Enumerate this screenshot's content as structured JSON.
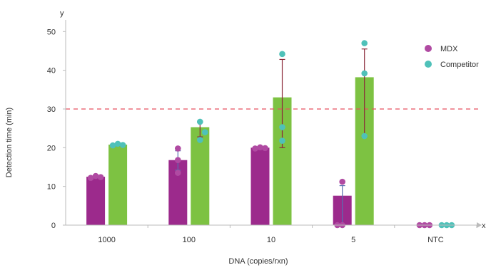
{
  "chart_data": {
    "type": "bar",
    "title": "",
    "xlabel": "DNA (copies/rxn)",
    "ylabel": "Detection time (min)",
    "x_axis_end_label": "x",
    "y_axis_end_label": "y",
    "ylim": [
      0,
      53
    ],
    "yticks": [
      0,
      10,
      20,
      30,
      40,
      50
    ],
    "categories": [
      "1000",
      "100",
      "10",
      "5",
      "NTC"
    ],
    "threshold": {
      "value": 30,
      "color": "#e8525f",
      "style": "dashed"
    },
    "legend_position": "top-right",
    "series": [
      {
        "name": "MDX",
        "bar_color": "#9c2a8c",
        "point_color": "#b04aa2",
        "error_color": "#5a6fb0",
        "values": [
          12.5,
          16.8,
          20,
          7.6,
          0
        ],
        "error_low": [
          12.2,
          14.2,
          19.6,
          0,
          0
        ],
        "error_high": [
          12.8,
          19.2,
          20.3,
          10.2,
          0
        ],
        "points": [
          [
            12.2,
            12.7,
            12.4
          ],
          [
            13.5,
            16.8,
            19.8
          ],
          [
            19.8,
            20.1,
            19.9
          ],
          [
            0,
            0,
            11.2
          ],
          [
            0,
            0,
            0
          ]
        ]
      },
      {
        "name": "Competitor",
        "bar_color": "#7dc242",
        "point_color": "#4fc1b9",
        "error_color": "#8b2a3a",
        "values": [
          20.8,
          25.3,
          33,
          38.2,
          0
        ],
        "error_low": [
          20.5,
          22.8,
          20,
          22.8,
          0
        ],
        "error_high": [
          21.1,
          26.5,
          42.8,
          45.5,
          0
        ],
        "points": [
          [
            20.6,
            21,
            20.7
          ],
          [
            22,
            26.7,
            24
          ],
          [
            44.2,
            25.3,
            21.8
          ],
          [
            47,
            39.2,
            23
          ],
          [
            0,
            0,
            0
          ]
        ]
      }
    ]
  }
}
